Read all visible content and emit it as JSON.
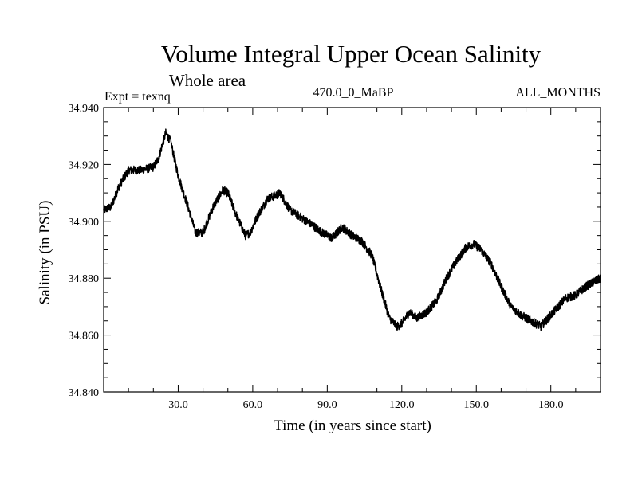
{
  "chart_data": {
    "type": "line",
    "title": "Volume Integral Upper Ocean Salinity",
    "subtitle": "Whole area",
    "experiment_label": "Expt = texnq",
    "period_label": "470.0_0_MaBP",
    "months_label": "ALL_MONTHS",
    "xlabel": "Time (in years since start)",
    "ylabel": "Salinity (in PSU)",
    "xlim": [
      0,
      200
    ],
    "ylim": [
      34.84,
      34.94
    ],
    "x_ticks": [
      {
        "value": 30,
        "label": "30.0"
      },
      {
        "value": 60,
        "label": "60.0"
      },
      {
        "value": 90,
        "label": "90.0"
      },
      {
        "value": 120,
        "label": "120.0"
      },
      {
        "value": 150,
        "label": "150.0"
      },
      {
        "value": 180,
        "label": "180.0"
      }
    ],
    "y_ticks": [
      {
        "value": 34.84,
        "label": "34.840"
      },
      {
        "value": 34.86,
        "label": "34.860"
      },
      {
        "value": 34.88,
        "label": "34.880"
      },
      {
        "value": 34.9,
        "label": "34.900"
      },
      {
        "value": 34.92,
        "label": "34.920"
      },
      {
        "value": 34.94,
        "label": "34.940"
      }
    ],
    "grid": false,
    "series": [
      {
        "name": "Salinity",
        "noise_amplitude": 0.0015,
        "x": [
          0,
          3,
          6,
          10,
          15,
          20,
          22,
          25,
          27,
          30,
          34,
          37,
          40,
          44,
          48,
          50,
          53,
          57,
          59,
          62,
          66,
          69,
          71,
          75,
          80,
          85,
          88,
          92,
          96,
          100,
          104,
          108,
          112,
          115,
          118,
          120,
          123,
          126,
          130,
          134,
          138,
          142,
          146,
          149,
          152,
          156,
          160,
          164,
          168,
          172,
          176,
          178,
          182,
          186,
          190,
          194,
          198,
          200
        ],
        "y": [
          34.904,
          34.905,
          34.912,
          34.918,
          34.918,
          34.919,
          34.922,
          34.931,
          34.928,
          34.916,
          34.905,
          34.896,
          34.896,
          34.905,
          34.911,
          34.91,
          34.903,
          34.895,
          34.896,
          34.902,
          34.908,
          34.909,
          34.91,
          34.904,
          34.901,
          34.898,
          34.896,
          34.894,
          34.898,
          34.895,
          34.893,
          34.888,
          34.875,
          34.866,
          34.863,
          34.864,
          34.868,
          34.866,
          34.868,
          34.872,
          34.88,
          34.886,
          34.891,
          34.892,
          34.89,
          34.885,
          34.877,
          34.87,
          34.867,
          34.865,
          34.863,
          34.865,
          34.869,
          34.873,
          34.874,
          34.877,
          34.879,
          34.88
        ]
      }
    ]
  }
}
